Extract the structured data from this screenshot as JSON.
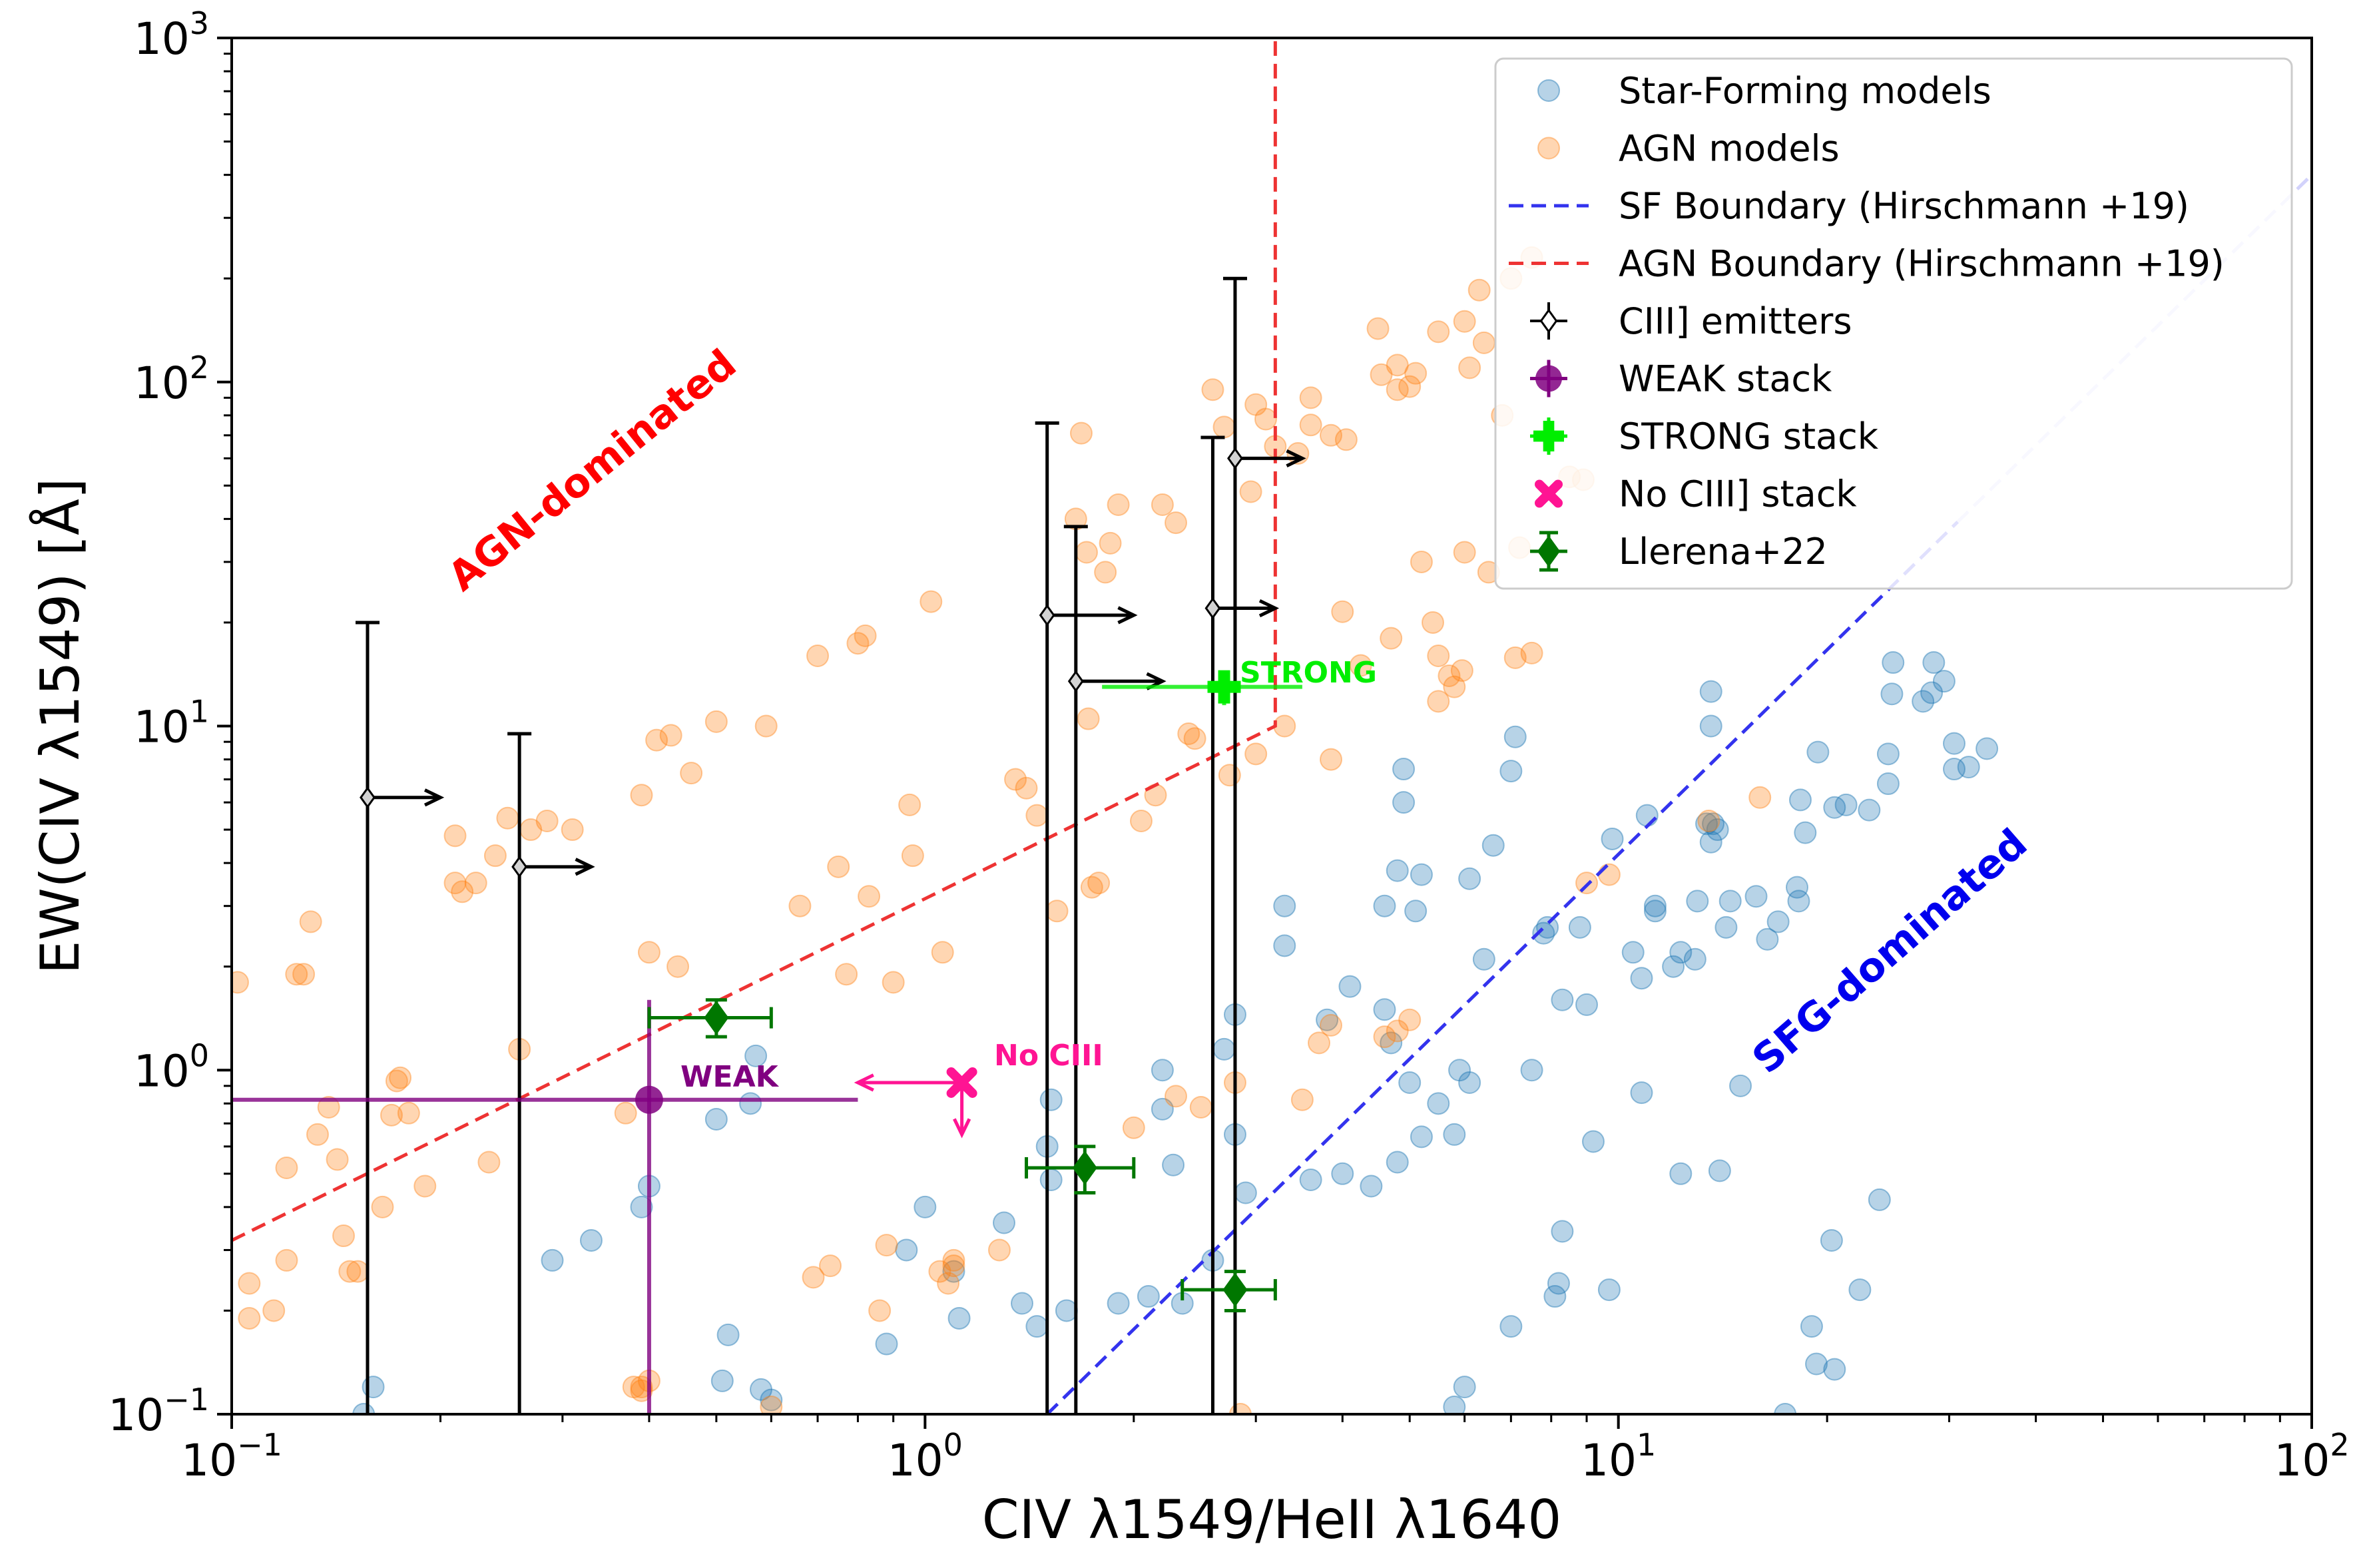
{
  "chart_data": {
    "type": "scatter",
    "xscale": "log",
    "yscale": "log",
    "xlim": [
      0.1,
      100
    ],
    "ylim": [
      0.1,
      1000
    ],
    "xlabel": "CIV λ1549/HeII λ1640",
    "ylabel": "EW(CIV λ1549) [Å]",
    "xticks": [
      {
        "value": 0.1,
        "base": "10",
        "exp": "−1"
      },
      {
        "value": 1,
        "base": "10",
        "exp": "0"
      },
      {
        "value": 10,
        "base": "10",
        "exp": "1"
      },
      {
        "value": 100,
        "base": "10",
        "exp": "2"
      }
    ],
    "yticks": [
      {
        "value": 0.1,
        "base": "10",
        "exp": "−1"
      },
      {
        "value": 1,
        "base": "10",
        "exp": "0"
      },
      {
        "value": 10,
        "base": "10",
        "exp": "1"
      },
      {
        "value": 100,
        "base": "10",
        "exp": "2"
      },
      {
        "value": 1000,
        "base": "10",
        "exp": "3"
      }
    ],
    "colors": {
      "sf": "#1f77b4",
      "agn": "#ff7f0e",
      "sf_boundary": "#3333ee",
      "agn_boundary": "#ee3333",
      "weak": "#800080",
      "strong": "#00ee00",
      "nociii": "#ff1493",
      "llerena": "#007700",
      "emitter_face": "#d3d3d3"
    },
    "sf_models": [
      [
        0.16,
        0.12
      ],
      [
        0.155,
        0.1
      ],
      [
        0.29,
        0.28
      ],
      [
        0.33,
        0.32
      ],
      [
        0.39,
        0.4
      ],
      [
        0.4,
        0.46
      ],
      [
        0.5,
        0.72
      ],
      [
        0.56,
        0.8
      ],
      [
        0.57,
        1.1
      ],
      [
        0.52,
        0.17
      ],
      [
        0.51,
        0.125
      ],
      [
        0.58,
        0.118
      ],
      [
        0.6,
        0.11
      ],
      [
        0.94,
        0.3
      ],
      [
        1.0,
        0.4
      ],
      [
        1.1,
        0.26
      ],
      [
        1.12,
        0.19
      ],
      [
        1.3,
        0.36
      ],
      [
        1.38,
        0.21
      ],
      [
        1.45,
        0.18
      ],
      [
        1.5,
        0.6
      ],
      [
        1.52,
        0.82
      ],
      [
        1.52,
        0.48
      ],
      [
        1.6,
        0.2
      ],
      [
        0.88,
        0.16
      ],
      [
        1.9,
        0.21
      ],
      [
        2.1,
        0.22
      ],
      [
        2.2,
        0.77
      ],
      [
        2.2,
        1.0
      ],
      [
        2.28,
        0.53
      ],
      [
        2.35,
        0.21
      ],
      [
        2.6,
        0.28
      ],
      [
        2.7,
        1.15
      ],
      [
        2.8,
        0.65
      ],
      [
        2.9,
        0.44
      ],
      [
        2.8,
        1.45
      ],
      [
        3.3,
        3.0
      ],
      [
        3.3,
        2.3
      ],
      [
        3.6,
        0.48
      ],
      [
        3.8,
        1.4
      ],
      [
        4.0,
        0.5
      ],
      [
        4.1,
        1.75
      ],
      [
        4.4,
        0.46
      ],
      [
        4.6,
        3.0
      ],
      [
        4.6,
        1.5
      ],
      [
        4.7,
        1.2
      ],
      [
        4.8,
        0.54
      ],
      [
        4.9,
        6.0
      ],
      [
        4.9,
        7.5
      ],
      [
        4.8,
        3.8
      ],
      [
        5.0,
        0.92
      ],
      [
        5.1,
        2.9
      ],
      [
        5.2,
        3.7
      ],
      [
        5.2,
        0.64
      ],
      [
        5.5,
        0.8
      ],
      [
        5.8,
        0.65
      ],
      [
        5.9,
        1.0
      ],
      [
        6.1,
        0.92
      ],
      [
        6.0,
        0.12
      ],
      [
        5.8,
        0.105
      ],
      [
        6.1,
        3.6
      ],
      [
        6.4,
        2.1
      ],
      [
        6.6,
        4.5
      ],
      [
        7.0,
        7.4
      ],
      [
        7.1,
        9.3
      ],
      [
        7.0,
        0.18
      ],
      [
        7.5,
        1.0
      ],
      [
        7.8,
        2.5
      ],
      [
        7.9,
        2.6
      ],
      [
        8.1,
        0.22
      ],
      [
        8.2,
        0.24
      ],
      [
        8.3,
        0.34
      ],
      [
        8.3,
        1.6
      ],
      [
        8.8,
        2.6
      ],
      [
        9.0,
        1.55
      ],
      [
        9.2,
        0.62
      ],
      [
        9.7,
        0.23
      ],
      [
        9.8,
        4.7
      ],
      [
        10.5,
        2.2
      ],
      [
        10.8,
        0.86
      ],
      [
        10.8,
        1.85
      ],
      [
        11.0,
        5.5
      ],
      [
        11.3,
        3.0
      ],
      [
        11.3,
        2.9
      ],
      [
        12.0,
        2.0
      ],
      [
        12.3,
        2.2
      ],
      [
        12.3,
        0.5
      ],
      [
        12.9,
        2.1
      ],
      [
        13.0,
        3.1
      ],
      [
        13.6,
        12.6
      ],
      [
        13.6,
        10.0
      ],
      [
        13.6,
        4.6
      ],
      [
        13.7,
        5.2
      ],
      [
        13.9,
        5.0
      ],
      [
        14.0,
        0.51
      ],
      [
        14.3,
        2.6
      ],
      [
        14.5,
        3.1
      ],
      [
        15.0,
        0.9
      ],
      [
        15.8,
        3.2
      ],
      [
        16.4,
        2.4
      ],
      [
        17.0,
        2.7
      ],
      [
        17.4,
        0.1
      ],
      [
        18.1,
        3.4
      ],
      [
        18.2,
        3.1
      ],
      [
        18.3,
        6.1
      ],
      [
        18.6,
        4.9
      ],
      [
        19.0,
        0.18
      ],
      [
        19.3,
        0.14
      ],
      [
        19.4,
        8.4
      ],
      [
        20.3,
        0.32
      ],
      [
        20.5,
        0.135
      ],
      [
        20.5,
        5.8
      ],
      [
        21.3,
        5.9
      ],
      [
        22.3,
        0.23
      ],
      [
        23.0,
        5.7
      ],
      [
        23.8,
        0.42
      ],
      [
        24.5,
        8.3
      ],
      [
        24.5,
        6.8
      ],
      [
        24.8,
        12.4
      ],
      [
        24.9,
        15.3
      ],
      [
        27.5,
        11.8
      ],
      [
        28.3,
        12.5
      ],
      [
        28.5,
        15.3
      ],
      [
        29.5,
        13.5
      ],
      [
        30.5,
        8.9
      ],
      [
        30.5,
        7.5
      ],
      [
        32.0,
        7.6
      ],
      [
        34.0,
        8.6
      ],
      [
        13.4,
        5.2
      ]
    ],
    "agn_models": [
      [
        0.102,
        1.8
      ],
      [
        0.106,
        0.24
      ],
      [
        0.106,
        0.19
      ],
      [
        0.115,
        0.2
      ],
      [
        0.12,
        0.52
      ],
      [
        0.12,
        0.28
      ],
      [
        0.124,
        1.9
      ],
      [
        0.127,
        1.9
      ],
      [
        0.13,
        2.7
      ],
      [
        0.133,
        0.65
      ],
      [
        0.138,
        0.78
      ],
      [
        0.142,
        0.55
      ],
      [
        0.145,
        0.33
      ],
      [
        0.148,
        0.26
      ],
      [
        0.152,
        0.26
      ],
      [
        0.165,
        0.4
      ],
      [
        0.17,
        0.74
      ],
      [
        0.173,
        0.93
      ],
      [
        0.175,
        0.95
      ],
      [
        0.18,
        0.75
      ],
      [
        0.19,
        0.46
      ],
      [
        0.21,
        3.5
      ],
      [
        0.21,
        4.8
      ],
      [
        0.215,
        3.3
      ],
      [
        0.225,
        3.5
      ],
      [
        0.235,
        0.54
      ],
      [
        0.24,
        4.2
      ],
      [
        0.25,
        5.4
      ],
      [
        0.26,
        1.15
      ],
      [
        0.27,
        5.0
      ],
      [
        0.285,
        5.3
      ],
      [
        0.31,
        5.0
      ],
      [
        0.37,
        0.75
      ],
      [
        0.38,
        0.12
      ],
      [
        0.39,
        0.12
      ],
      [
        0.39,
        0.117
      ],
      [
        0.4,
        0.125
      ],
      [
        0.39,
        6.3
      ],
      [
        0.4,
        2.2
      ],
      [
        0.41,
        9.1
      ],
      [
        0.43,
        9.4
      ],
      [
        0.44,
        2.0
      ],
      [
        0.46,
        7.3
      ],
      [
        0.5,
        10.3
      ],
      [
        0.59,
        10.0
      ],
      [
        0.6,
        0.105
      ],
      [
        0.66,
        3.0
      ],
      [
        0.69,
        0.25
      ],
      [
        0.7,
        16.0
      ],
      [
        0.73,
        0.27
      ],
      [
        0.75,
        3.9
      ],
      [
        0.77,
        1.9
      ],
      [
        0.8,
        17.4
      ],
      [
        0.82,
        18.3
      ],
      [
        0.83,
        3.2
      ],
      [
        0.86,
        0.2
      ],
      [
        0.88,
        0.31
      ],
      [
        0.9,
        1.8
      ],
      [
        0.95,
        5.9
      ],
      [
        0.96,
        4.2
      ],
      [
        1.02,
        23.0
      ],
      [
        1.05,
        0.26
      ],
      [
        1.08,
        0.24
      ],
      [
        1.1,
        0.28
      ],
      [
        1.1,
        0.27
      ],
      [
        1.06,
        2.2
      ],
      [
        1.28,
        0.3
      ],
      [
        1.35,
        7.0
      ],
      [
        1.4,
        6.6
      ],
      [
        1.45,
        5.5
      ],
      [
        1.55,
        2.9
      ],
      [
        1.65,
        40.0
      ],
      [
        1.68,
        71.0
      ],
      [
        1.71,
        32.0
      ],
      [
        1.72,
        10.5
      ],
      [
        1.74,
        3.4
      ],
      [
        1.78,
        3.5
      ],
      [
        1.82,
        28.0
      ],
      [
        1.85,
        34.0
      ],
      [
        1.9,
        44.0
      ],
      [
        2.0,
        0.68
      ],
      [
        2.05,
        5.3
      ],
      [
        2.15,
        6.3
      ],
      [
        2.2,
        44.0
      ],
      [
        2.3,
        39.0
      ],
      [
        2.3,
        0.84
      ],
      [
        2.4,
        9.5
      ],
      [
        2.45,
        9.2
      ],
      [
        2.5,
        0.78
      ],
      [
        2.6,
        95.0
      ],
      [
        2.7,
        74.0
      ],
      [
        2.75,
        7.2
      ],
      [
        2.8,
        0.92
      ],
      [
        2.85,
        0.1
      ],
      [
        2.95,
        48.0
      ],
      [
        3.0,
        8.3
      ],
      [
        3.1,
        78.0
      ],
      [
        3.2,
        65.0
      ],
      [
        3.3,
        10.0
      ],
      [
        3.45,
        62.0
      ],
      [
        3.5,
        0.82
      ],
      [
        3.6,
        90.0
      ],
      [
        3.85,
        1.35
      ],
      [
        3.85,
        8.0
      ],
      [
        3.85,
        70.0
      ],
      [
        4.0,
        21.5
      ],
      [
        4.05,
        68.0
      ],
      [
        4.25,
        15.0
      ],
      [
        4.5,
        143.0
      ],
      [
        4.55,
        105.0
      ],
      [
        4.7,
        18.0
      ],
      [
        4.8,
        112.0
      ],
      [
        5.0,
        97.0
      ],
      [
        5.1,
        106.0
      ],
      [
        5.2,
        30.0
      ],
      [
        5.4,
        20.0
      ],
      [
        5.5,
        16.0
      ],
      [
        5.5,
        11.8
      ],
      [
        5.7,
        14.0
      ],
      [
        5.8,
        13.0
      ],
      [
        5.95,
        14.5
      ],
      [
        6.1,
        110.0
      ],
      [
        6.4,
        130.0
      ],
      [
        6.8,
        80.0
      ],
      [
        7.1,
        15.8
      ],
      [
        7.5,
        16.3
      ],
      [
        4.6,
        1.25
      ],
      [
        4.8,
        1.3
      ],
      [
        5.0,
        1.4
      ],
      [
        3.7,
        1.2
      ],
      [
        5.5,
        140.0
      ],
      [
        6.0,
        150.0
      ],
      [
        6.3,
        185.0
      ],
      [
        7.0,
        200.0
      ],
      [
        7.5,
        230.0
      ],
      [
        8.5,
        53.0
      ],
      [
        8.9,
        52.0
      ],
      [
        6.5,
        28.0
      ],
      [
        7.2,
        33.0
      ],
      [
        6.0,
        32.0
      ],
      [
        9.0,
        3.5
      ],
      [
        9.7,
        3.7
      ],
      [
        13.5,
        5.3
      ],
      [
        16.0,
        6.2
      ],
      [
        3.6,
        75.0
      ],
      [
        4.8,
        95.0
      ],
      [
        3.0,
        86.0
      ]
    ],
    "ciii_emitters": [
      {
        "x": 0.157,
        "y": 6.2,
        "ylo": 0.1,
        "yhi": 20,
        "xarrow_to": 0.2
      },
      {
        "x": 0.26,
        "y": 3.9,
        "ylo": 0.1,
        "yhi": 9.5,
        "xarrow_to": 0.33
      },
      {
        "x": 1.5,
        "y": 21,
        "ylo": 0.1,
        "yhi": 76,
        "xarrow_to": 2.0
      },
      {
        "x": 1.65,
        "y": 13.5,
        "ylo": 0.1,
        "yhi": 38,
        "xarrow_to": 2.2
      },
      {
        "x": 2.6,
        "y": 22,
        "ylo": 0.1,
        "yhi": 69,
        "xarrow_to": 3.2
      },
      {
        "x": 2.8,
        "y": 60,
        "ylo": 0.1,
        "yhi": 200,
        "xarrow_to": 3.5
      }
    ],
    "weak_stack": {
      "x": 0.4,
      "y": 0.82,
      "xlo": 0.1,
      "xhi": 0.8,
      "ylo": 0.1,
      "yhi": 1.6
    },
    "strong_stack": {
      "x": 2.7,
      "y": 13,
      "xlo": 1.8,
      "xhi": 3.5,
      "ylo": 11.5,
      "yhi": 14.5
    },
    "nociii_stack": {
      "x": 1.13,
      "y": 0.92,
      "xarrow_to": 0.8,
      "yarrow_to": 0.65
    },
    "llerena22": [
      {
        "x": 0.5,
        "y": 1.42,
        "xlo": 0.4,
        "xhi": 0.6,
        "ylo": 1.25,
        "yhi": 1.6
      },
      {
        "x": 1.7,
        "y": 0.52,
        "xlo": 1.4,
        "xhi": 2.0,
        "ylo": 0.44,
        "yhi": 0.6
      },
      {
        "x": 2.8,
        "y": 0.23,
        "xlo": 2.35,
        "xhi": 3.2,
        "ylo": 0.2,
        "yhi": 0.26
      }
    ],
    "sf_boundary": [
      [
        1.5,
        0.1
      ],
      [
        100,
        400
      ]
    ],
    "agn_boundary": [
      [
        0.1,
        0.32
      ],
      [
        3.2,
        10
      ],
      [
        3.2,
        1000
      ]
    ],
    "legend": {
      "location": "upper right",
      "items": [
        {
          "label": "Star-Forming models",
          "marker": "sf"
        },
        {
          "label": "AGN models",
          "marker": "agn"
        },
        {
          "label": "SF Boundary (Hirschmann +19)",
          "marker": "sf_line"
        },
        {
          "label": "AGN Boundary (Hirschmann +19)",
          "marker": "agn_line"
        },
        {
          "label": "CIII] emitters",
          "marker": "emitter"
        },
        {
          "label": "WEAK stack",
          "marker": "weak"
        },
        {
          "label": "STRONG stack",
          "marker": "strong"
        },
        {
          "label": "No CIII] stack",
          "marker": "nociii"
        },
        {
          "label": "Llerena+22",
          "marker": "llerena"
        }
      ]
    },
    "annotations": {
      "agn_dominated": "AGN-dominated",
      "sfg_dominated": "SFG-dominated",
      "strong": "STRONG",
      "weak": "WEAK",
      "no_ciii": "No CIII"
    }
  }
}
